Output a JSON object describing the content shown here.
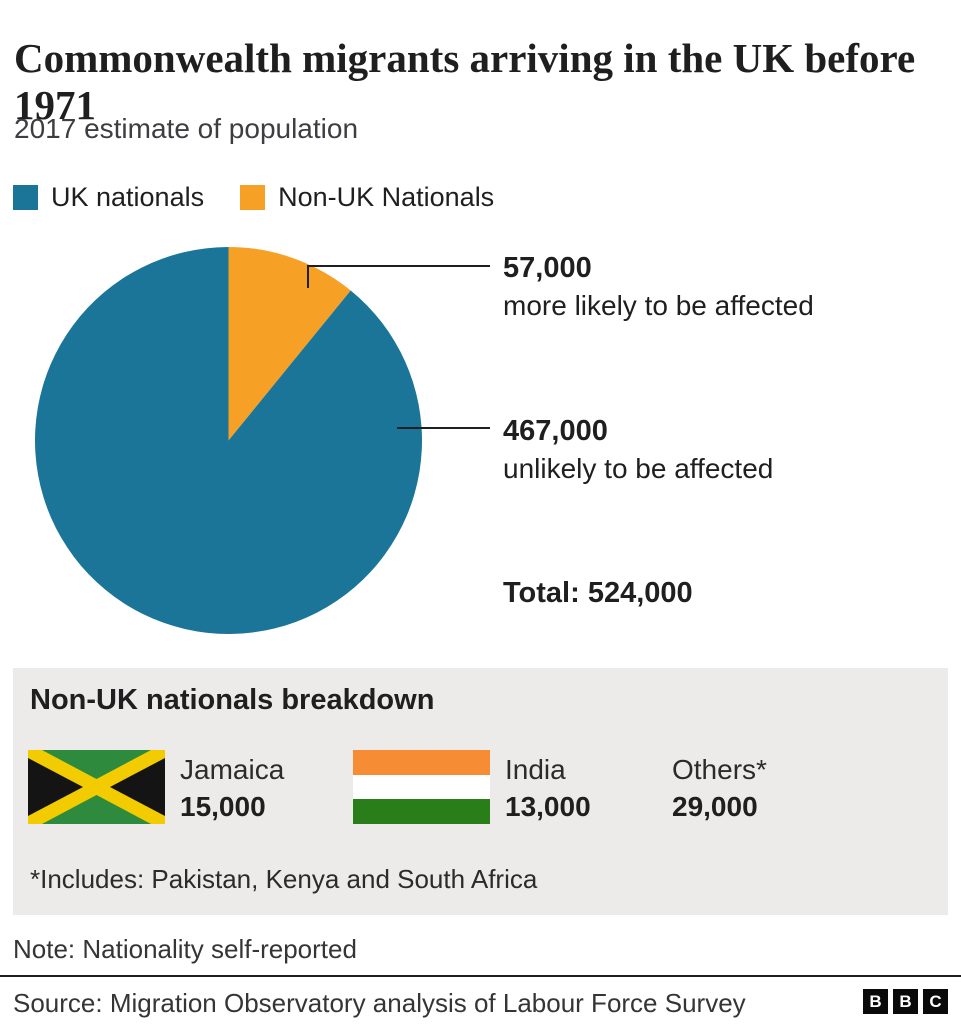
{
  "header": {
    "title": "Commonwealth migrants arriving in the UK before 1971",
    "subtitle": "2017 estimate of population"
  },
  "legend": {
    "items": [
      {
        "label": "UK nationals",
        "color": "#1B7599"
      },
      {
        "label": "Non-UK Nationals",
        "color": "#F6A125"
      }
    ]
  },
  "chart_data": {
    "type": "pie",
    "title": "Commonwealth migrants arriving in the UK before 1971",
    "subtitle": "2017 estimate of population",
    "start_angle_deg": 0,
    "direction": "clockwise",
    "legend_position": "top",
    "total": 524000,
    "segments": [
      {
        "label": "Non-UK Nationals",
        "value": 57000,
        "color": "#F6A125",
        "annotation": "more likely to be affected"
      },
      {
        "label": "UK nationals",
        "value": 467000,
        "color": "#1B7599",
        "annotation": "unlikely to be affected"
      }
    ]
  },
  "callouts": [
    {
      "value_label": "57,000",
      "desc": "more likely to be affected"
    },
    {
      "value_label": "467,000",
      "desc": "unlikely to be affected"
    }
  ],
  "total_label": "Total: 524,000",
  "breakdown": {
    "heading": "Non-UK nationals breakdown",
    "items": [
      {
        "flag": "jamaica-flag",
        "name": "Jamaica",
        "value": "15,000"
      },
      {
        "flag": "india-flag",
        "name": "India",
        "value": "13,000"
      },
      {
        "flag": null,
        "name": "Others*",
        "value": "29,000"
      }
    ],
    "footnote": "*Includes: Pakistan, Kenya and South Africa"
  },
  "note": "Note: Nationality self-reported",
  "source": "Source: Migration Observatory analysis of Labour Force Survey",
  "logo": [
    "B",
    "B",
    "C"
  ],
  "colors": {
    "teal": "#1B7599",
    "orange": "#F6A125",
    "panel_gray": "#ECEBE9",
    "line": "#1f1f1f"
  }
}
